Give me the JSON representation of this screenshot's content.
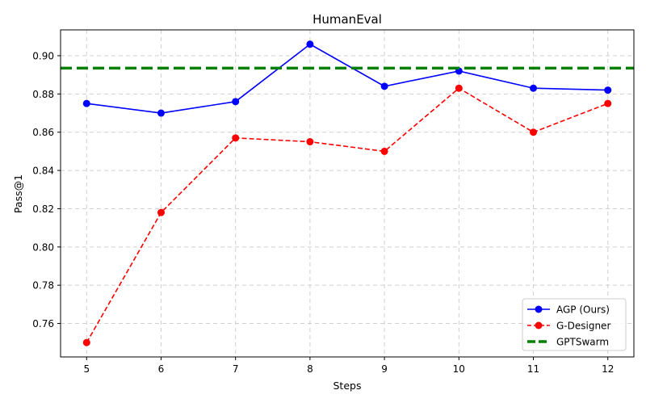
{
  "chart_data": {
    "type": "line",
    "title": "HumanEval",
    "xlabel": "Steps",
    "ylabel": "Pass@1",
    "x": [
      5,
      6,
      7,
      8,
      9,
      10,
      11,
      12
    ],
    "xlim": [
      4.65,
      12.35
    ],
    "ylim": [
      0.7425,
      0.9135
    ],
    "yticks": [
      0.76,
      0.78,
      0.8,
      0.82,
      0.84,
      0.86,
      0.88,
      0.9
    ],
    "ytick_labels": [
      "0.76",
      "0.78",
      "0.80",
      "0.82",
      "0.84",
      "0.86",
      "0.88",
      "0.90"
    ],
    "grid": true,
    "legend_position": "bottom-right",
    "series": [
      {
        "name": "AGP (Ours)",
        "color": "#0000ff",
        "style": "solid",
        "marker": "circle",
        "values": [
          0.875,
          0.87,
          0.876,
          0.906,
          0.884,
          0.892,
          0.883,
          0.882
        ]
      },
      {
        "name": "G-Designer",
        "color": "#ff0000",
        "style": "dashed",
        "marker": "circle",
        "values": [
          0.75,
          0.818,
          0.857,
          0.855,
          0.85,
          0.883,
          0.86,
          0.875
        ]
      },
      {
        "name": "GPTSwarm",
        "color": "#008000",
        "style": "dashed-thick",
        "marker": "none",
        "constant": 0.8935
      }
    ]
  }
}
